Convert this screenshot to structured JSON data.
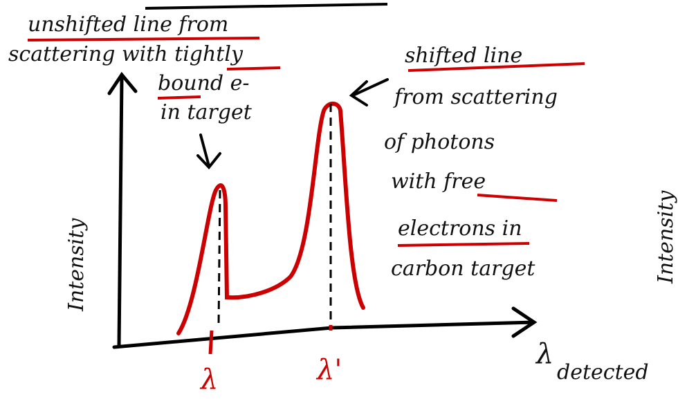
{
  "annotations": {
    "unshifted": [
      "unshifted line from",
      "scattering with tightly",
      "bound e-",
      "in target"
    ],
    "shifted": [
      "shifted line",
      "from scattering",
      "of photons",
      "with free",
      "electrons in",
      "carbon target"
    ]
  },
  "axes": {
    "y_label": "Intensity",
    "x_label": "λ",
    "x_label_subscript": "detected",
    "y_label_right": "Intensity"
  },
  "peaks": [
    {
      "label": "λ"
    },
    {
      "label": "λ'"
    }
  ]
}
